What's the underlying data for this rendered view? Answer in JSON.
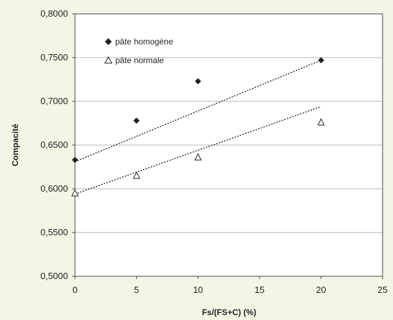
{
  "chart_data": {
    "type": "scatter",
    "xlabel": "Fs/(FS+C) (%)",
    "ylabel": "Compacité",
    "xlim": [
      0,
      25
    ],
    "ylim": [
      0.5,
      0.8
    ],
    "x_ticks": [
      "0",
      "5",
      "10",
      "15",
      "20",
      "25"
    ],
    "y_ticks": [
      "0,5000",
      "0,5500",
      "0,6000",
      "0,6500",
      "0,7000",
      "0,7500",
      "0,8000"
    ],
    "grid": "horizontal",
    "legend_position": "top-left",
    "series": [
      {
        "name": "pâte homogène",
        "marker": "filled-diamond",
        "color": "#222222",
        "points": [
          {
            "x": 0,
            "y": 0.633
          },
          {
            "x": 5,
            "y": 0.678
          },
          {
            "x": 10,
            "y": 0.723
          },
          {
            "x": 20,
            "y": 0.747
          }
        ],
        "trendline": {
          "x": [
            0,
            20
          ],
          "y": [
            0.631,
            0.747
          ]
        }
      },
      {
        "name": "pâte normale",
        "marker": "open-triangle",
        "color": "#222222",
        "points": [
          {
            "x": 0,
            "y": 0.595
          },
          {
            "x": 5,
            "y": 0.615
          },
          {
            "x": 10,
            "y": 0.636
          },
          {
            "x": 20,
            "y": 0.676
          }
        ],
        "trendline": {
          "x": [
            0,
            20
          ],
          "y": [
            0.594,
            0.694
          ]
        }
      }
    ]
  }
}
